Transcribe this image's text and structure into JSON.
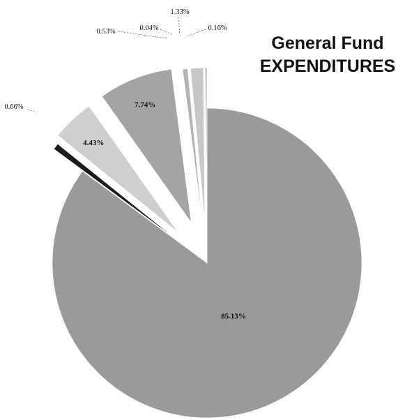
{
  "chart_data": {
    "type": "pie",
    "title_line1": "General Fund",
    "title_line2": "EXPENDITURES",
    "slices": [
      {
        "label": "85.13%",
        "value": 85.13,
        "color": "#9a9a9a",
        "explode": false
      },
      {
        "label": "0.66%",
        "value": 0.66,
        "color": "#1c1c1c",
        "explode": true
      },
      {
        "label": "4.43%",
        "value": 4.43,
        "color": "#cfcfcf",
        "explode": true
      },
      {
        "label": "7.74%",
        "value": 7.74,
        "color": "#a4a4a4",
        "explode": true
      },
      {
        "label": "0.53%",
        "value": 0.53,
        "color": "#b4b4b4",
        "explode": true
      },
      {
        "label": "0.04%",
        "value": 0.04,
        "color": "#6d6d6d",
        "explode": true
      },
      {
        "label": "1.33%",
        "value": 1.33,
        "color": "#c7c7c7",
        "explode": true
      },
      {
        "label": "0.16%",
        "value": 0.16,
        "color": "#8f8f8f",
        "explode": true
      }
    ]
  }
}
